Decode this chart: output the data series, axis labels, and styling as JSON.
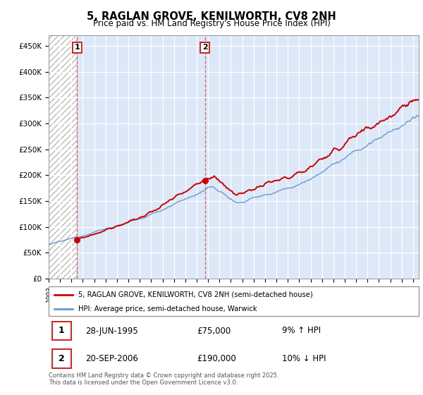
{
  "title": "5, RAGLAN GROVE, KENILWORTH, CV8 2NH",
  "subtitle": "Price paid vs. HM Land Registry's House Price Index (HPI)",
  "legend_line1": "5, RAGLAN GROVE, KENILWORTH, CV8 2NH (semi-detached house)",
  "legend_line2": "HPI: Average price, semi-detached house, Warwick",
  "annotation1_date": "28-JUN-1995",
  "annotation1_price": "£75,000",
  "annotation1_hpi": "9% ↑ HPI",
  "annotation2_date": "20-SEP-2006",
  "annotation2_price": "£190,000",
  "annotation2_hpi": "10% ↓ HPI",
  "footer": "Contains HM Land Registry data © Crown copyright and database right 2025.\nThis data is licensed under the Open Government Licence v3.0.",
  "red_color": "#cc0000",
  "blue_color": "#6699cc",
  "annotation_vline_color": "#dd4444",
  "background_plot": "#dce8f8",
  "ylim": [
    0,
    470000
  ],
  "ylabel_ticks": [
    0,
    50000,
    100000,
    150000,
    200000,
    250000,
    300000,
    350000,
    400000,
    450000
  ],
  "x_start_year": 1993,
  "x_end_year": 2025,
  "sale1_year": 1995.49,
  "sale1_price": 75000,
  "sale2_year": 2006.73,
  "sale2_price": 190000
}
